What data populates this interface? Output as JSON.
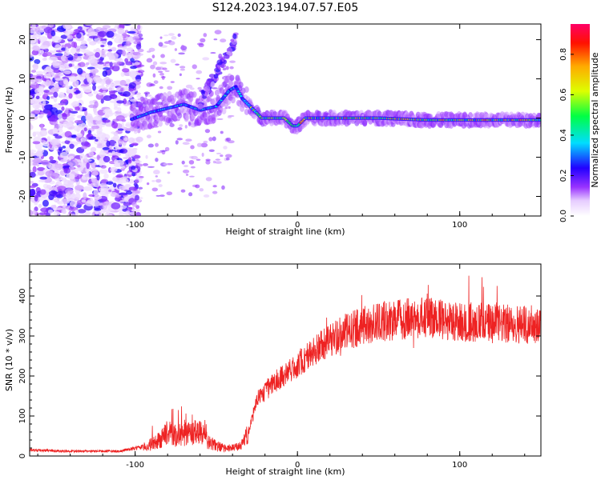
{
  "figure": {
    "title": "S124.2023.194.07.57.E05"
  },
  "colors": {
    "snr_line": "#ee2222",
    "axes": "#000000",
    "background": "#ffffff"
  },
  "chart_data": [
    {
      "type": "heatmap",
      "xlabel": "Height of straight line (km)",
      "ylabel": "Frequency (Hz)",
      "xlim": [
        -165,
        150
      ],
      "ylim": [
        -25,
        24
      ],
      "x_ticks": [
        {
          "value": -100,
          "label": "-100"
        },
        {
          "value": 0,
          "label": "0"
        },
        {
          "value": 100,
          "label": "100"
        }
      ],
      "y_ticks": [
        {
          "value": 20,
          "label": "20"
        },
        {
          "value": 10,
          "label": "10"
        },
        {
          "value": 0,
          "label": "0"
        },
        {
          "value": -10,
          "label": "-10"
        },
        {
          "value": -20,
          "label": "-20"
        }
      ],
      "ridge": {
        "description_points": [
          [
            -100,
            0
          ],
          [
            -90,
            1.5
          ],
          [
            -80,
            2.5
          ],
          [
            -70,
            3.5
          ],
          [
            -60,
            2
          ],
          [
            -50,
            3
          ],
          [
            -42,
            7
          ],
          [
            -38,
            8
          ],
          [
            -34,
            5
          ],
          [
            -28,
            2.5
          ],
          [
            -22,
            0
          ],
          [
            -15,
            0
          ],
          [
            -8,
            0
          ],
          [
            -3,
            -2
          ],
          [
            0,
            -2
          ],
          [
            5,
            0
          ],
          [
            20,
            0
          ],
          [
            50,
            0
          ],
          [
            80,
            -0.5
          ],
          [
            110,
            -0.5
          ],
          [
            148,
            -0.5
          ]
        ]
      },
      "colorbar": {
        "label": "Normalized spectral amplitude",
        "range": [
          0,
          0.95
        ],
        "ticks": [
          {
            "value": 0.0,
            "label": "0.0"
          },
          {
            "value": 0.2,
            "label": "0.2"
          },
          {
            "value": 0.4,
            "label": "0.4"
          },
          {
            "value": 0.6,
            "label": "0.6"
          },
          {
            "value": 0.8,
            "label": "0.8"
          }
        ]
      }
    },
    {
      "type": "line",
      "xlabel": "Height of straight line (km)",
      "ylabel": "SNR (10 * v/v)",
      "xlim": [
        -165,
        150
      ],
      "ylim": [
        0,
        480
      ],
      "x_ticks": [
        {
          "value": -100,
          "label": "-100"
        },
        {
          "value": 0,
          "label": "0"
        },
        {
          "value": 100,
          "label": "100"
        }
      ],
      "y_ticks": [
        {
          "value": 0,
          "label": "0"
        },
        {
          "value": 100,
          "label": "100"
        },
        {
          "value": 200,
          "label": "200"
        },
        {
          "value": 300,
          "label": "300"
        },
        {
          "value": 400,
          "label": "400"
        }
      ],
      "series": [
        {
          "envelope_x": [
            -165,
            -140,
            -110,
            -92,
            -85,
            -80,
            -75,
            -68,
            -60,
            -55,
            -50,
            -45,
            -40,
            -35,
            -30,
            -25,
            -20,
            -15,
            -10,
            -5,
            0,
            10,
            20,
            30,
            40,
            50,
            60,
            70,
            80,
            90,
            100,
            110,
            120,
            130,
            140,
            150
          ],
          "envelope_y": [
            15,
            12,
            12,
            25,
            40,
            60,
            50,
            55,
            60,
            35,
            25,
            20,
            20,
            25,
            60,
            140,
            160,
            180,
            200,
            210,
            230,
            260,
            290,
            310,
            325,
            335,
            340,
            345,
            345,
            340,
            335,
            335,
            330,
            330,
            330,
            330
          ]
        }
      ]
    }
  ]
}
